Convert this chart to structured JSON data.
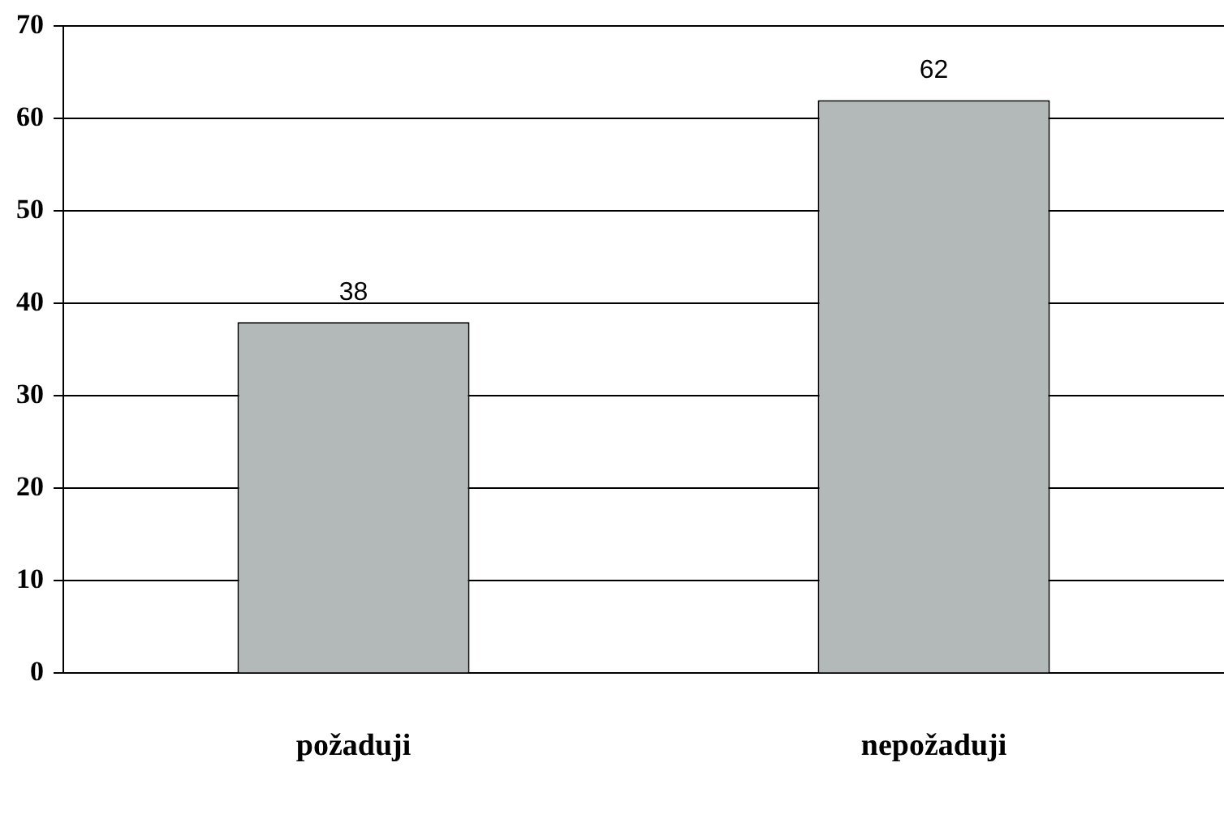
{
  "chart_data": {
    "type": "bar",
    "categories": [
      "požaduji",
      "nepožaduji"
    ],
    "values": [
      38,
      62
    ],
    "color": "#b3b9b9",
    "ylim": [
      0,
      70
    ],
    "yticks": [
      0,
      10,
      20,
      30,
      40,
      50,
      60,
      70
    ],
    "grid": "y",
    "data_labels": true,
    "legend": false
  }
}
